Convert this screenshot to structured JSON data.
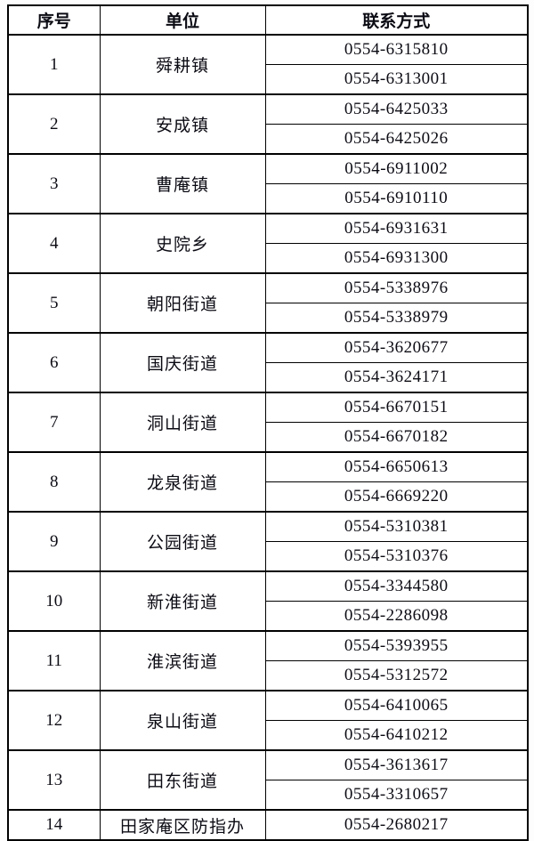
{
  "table": {
    "headers": [
      "序号",
      "单位",
      "联系方式"
    ],
    "rows": [
      {
        "number": "1",
        "unit": "舜耕镇",
        "phones": [
          "0554-6315810",
          "0554-6313001"
        ]
      },
      {
        "number": "2",
        "unit": "安成镇",
        "phones": [
          "0554-6425033",
          "0554-6425026"
        ]
      },
      {
        "number": "3",
        "unit": "曹庵镇",
        "phones": [
          "0554-6911002",
          "0554-6910110"
        ]
      },
      {
        "number": "4",
        "unit": "史院乡",
        "phones": [
          "0554-6931631",
          "0554-6931300"
        ]
      },
      {
        "number": "5",
        "unit": "朝阳街道",
        "phones": [
          "0554-5338976",
          "0554-5338979"
        ]
      },
      {
        "number": "6",
        "unit": "国庆街道",
        "phones": [
          "0554-3620677",
          "0554-3624171"
        ]
      },
      {
        "number": "7",
        "unit": "洞山街道",
        "phones": [
          "0554-6670151",
          "0554-6670182"
        ]
      },
      {
        "number": "8",
        "unit": "龙泉街道",
        "phones": [
          "0554-6650613",
          "0554-6669220"
        ]
      },
      {
        "number": "9",
        "unit": "公园街道",
        "phones": [
          "0554-5310381",
          "0554-5310376"
        ]
      },
      {
        "number": "10",
        "unit": "新淮街道",
        "phones": [
          "0554-3344580",
          "0554-2286098"
        ]
      },
      {
        "number": "11",
        "unit": "淮滨街道",
        "phones": [
          "0554-5393955",
          "0554-5312572"
        ]
      },
      {
        "number": "12",
        "unit": "泉山街道",
        "phones": [
          "0554-6410065",
          "0554-6410212"
        ]
      },
      {
        "number": "13",
        "unit": "田东街道",
        "phones": [
          "0554-3613617",
          "0554-3310657"
        ]
      },
      {
        "number": "14",
        "unit": "田家庵区防指办",
        "phones": [
          "0554-2680217"
        ]
      }
    ],
    "colors": {
      "border": "#000000",
      "text": "#0b0b14",
      "background": "#ffffff"
    }
  }
}
